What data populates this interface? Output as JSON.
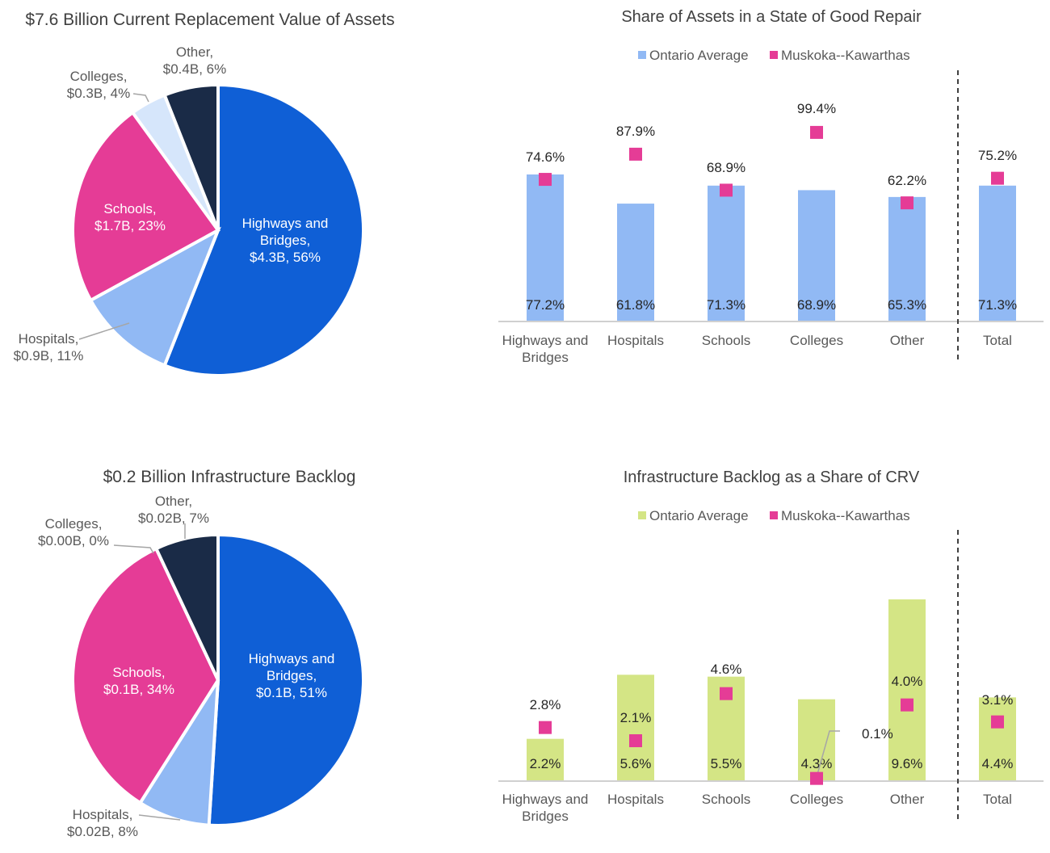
{
  "colors": {
    "highways": "#0f5fd6",
    "hospitals": "#91b9f4",
    "schools": "#e53c96",
    "colleges": "#d6e6fb",
    "other": "#1a2b47",
    "ontario_bar_top": "#91b9f4",
    "ontario_bar_bottom": "#d4e585",
    "muskoka": "#e53c96",
    "text": "#404040",
    "axis": "#d0d0d0"
  },
  "chart_data": [
    {
      "id": "crv-pie",
      "type": "pie",
      "title": "$7.6 Billion Current Replacement Value of Assets",
      "slices": [
        {
          "key": "highways",
          "label": [
            "Highways and",
            "Bridges,",
            "$4.3B, 56%"
          ],
          "value": 4.3,
          "percent": 56
        },
        {
          "key": "hospitals",
          "label": [
            "Hospitals,",
            "$0.9B, 11%"
          ],
          "value": 0.9,
          "percent": 11
        },
        {
          "key": "schools",
          "label": [
            "Schools,",
            "$1.7B, 23%"
          ],
          "value": 1.7,
          "percent": 23
        },
        {
          "key": "colleges",
          "label": [
            "Colleges,",
            "$0.3B, 4%"
          ],
          "value": 0.3,
          "percent": 4
        },
        {
          "key": "other",
          "label": [
            "Other,",
            "$0.4B, 6%"
          ],
          "value": 0.4,
          "percent": 6
        }
      ]
    },
    {
      "id": "good-repair-bar",
      "type": "bar",
      "title": "Share of Assets in a State of Good Repair",
      "legend": [
        "Ontario Average",
        "Muskoka--Kawarthas"
      ],
      "legend_position": "top",
      "categories": [
        [
          "Highways and",
          "Bridges"
        ],
        [
          "Hospitals"
        ],
        [
          "Schools"
        ],
        [
          "Colleges"
        ],
        [
          "Other"
        ],
        [
          "Total"
        ]
      ],
      "series": [
        {
          "name": "Ontario Average",
          "kind": "bar",
          "values": [
            77.2,
            61.8,
            71.3,
            68.9,
            65.3,
            71.3
          ],
          "labels": [
            "77.2%",
            "61.8%",
            "71.3%",
            "68.9%",
            "65.3%",
            "71.3%"
          ]
        },
        {
          "name": "Muskoka--Kawarthas",
          "kind": "marker",
          "values": [
            74.6,
            87.9,
            68.9,
            99.4,
            62.2,
            75.2
          ],
          "labels": [
            "74.6%",
            "87.9%",
            "68.9%",
            "99.4%",
            "62.2%",
            "75.2%"
          ]
        }
      ],
      "ylim": [
        0,
        100
      ],
      "separator_before": "Total"
    },
    {
      "id": "backlog-pie",
      "type": "pie",
      "title": "$0.2 Billion Infrastructure Backlog",
      "slices": [
        {
          "key": "highways",
          "label": [
            "Highways and",
            "Bridges,",
            "$0.1B, 51%"
          ],
          "value": 0.1,
          "percent": 51
        },
        {
          "key": "hospitals",
          "label": [
            "Hospitals,",
            "$0.02B, 8%"
          ],
          "value": 0.02,
          "percent": 8
        },
        {
          "key": "schools",
          "label": [
            "Schools,",
            "$0.1B, 34%"
          ],
          "value": 0.1,
          "percent": 34
        },
        {
          "key": "colleges",
          "label": [
            "Colleges,",
            "$0.00B, 0%"
          ],
          "value": 0.0,
          "percent": 0
        },
        {
          "key": "other",
          "label": [
            "Other,",
            "$0.02B, 7%"
          ],
          "value": 0.02,
          "percent": 7
        }
      ]
    },
    {
      "id": "backlog-bar",
      "type": "bar",
      "title": "Infrastructure Backlog as a Share of CRV",
      "legend": [
        "Ontario Average",
        "Muskoka--Kawarthas"
      ],
      "legend_position": "top",
      "categories": [
        [
          "Highways and",
          "Bridges"
        ],
        [
          "Hospitals"
        ],
        [
          "Schools"
        ],
        [
          "Colleges"
        ],
        [
          "Other"
        ],
        [
          "Total"
        ]
      ],
      "series": [
        {
          "name": "Ontario Average",
          "kind": "bar",
          "values": [
            2.2,
            5.6,
            5.5,
            4.3,
            9.6,
            4.4
          ],
          "labels": [
            "2.2%",
            "5.6%",
            "5.5%",
            "4.3%",
            "9.6%",
            "4.4%"
          ]
        },
        {
          "name": "Muskoka--Kawarthas",
          "kind": "marker",
          "values": [
            2.8,
            2.1,
            4.6,
            0.1,
            4.0,
            3.1
          ],
          "labels": [
            "2.8%",
            "2.1%",
            "4.6%",
            "0.1%",
            "4.0%",
            "3.1%"
          ]
        }
      ],
      "ylim": [
        0,
        10
      ],
      "separator_before": "Total"
    }
  ]
}
